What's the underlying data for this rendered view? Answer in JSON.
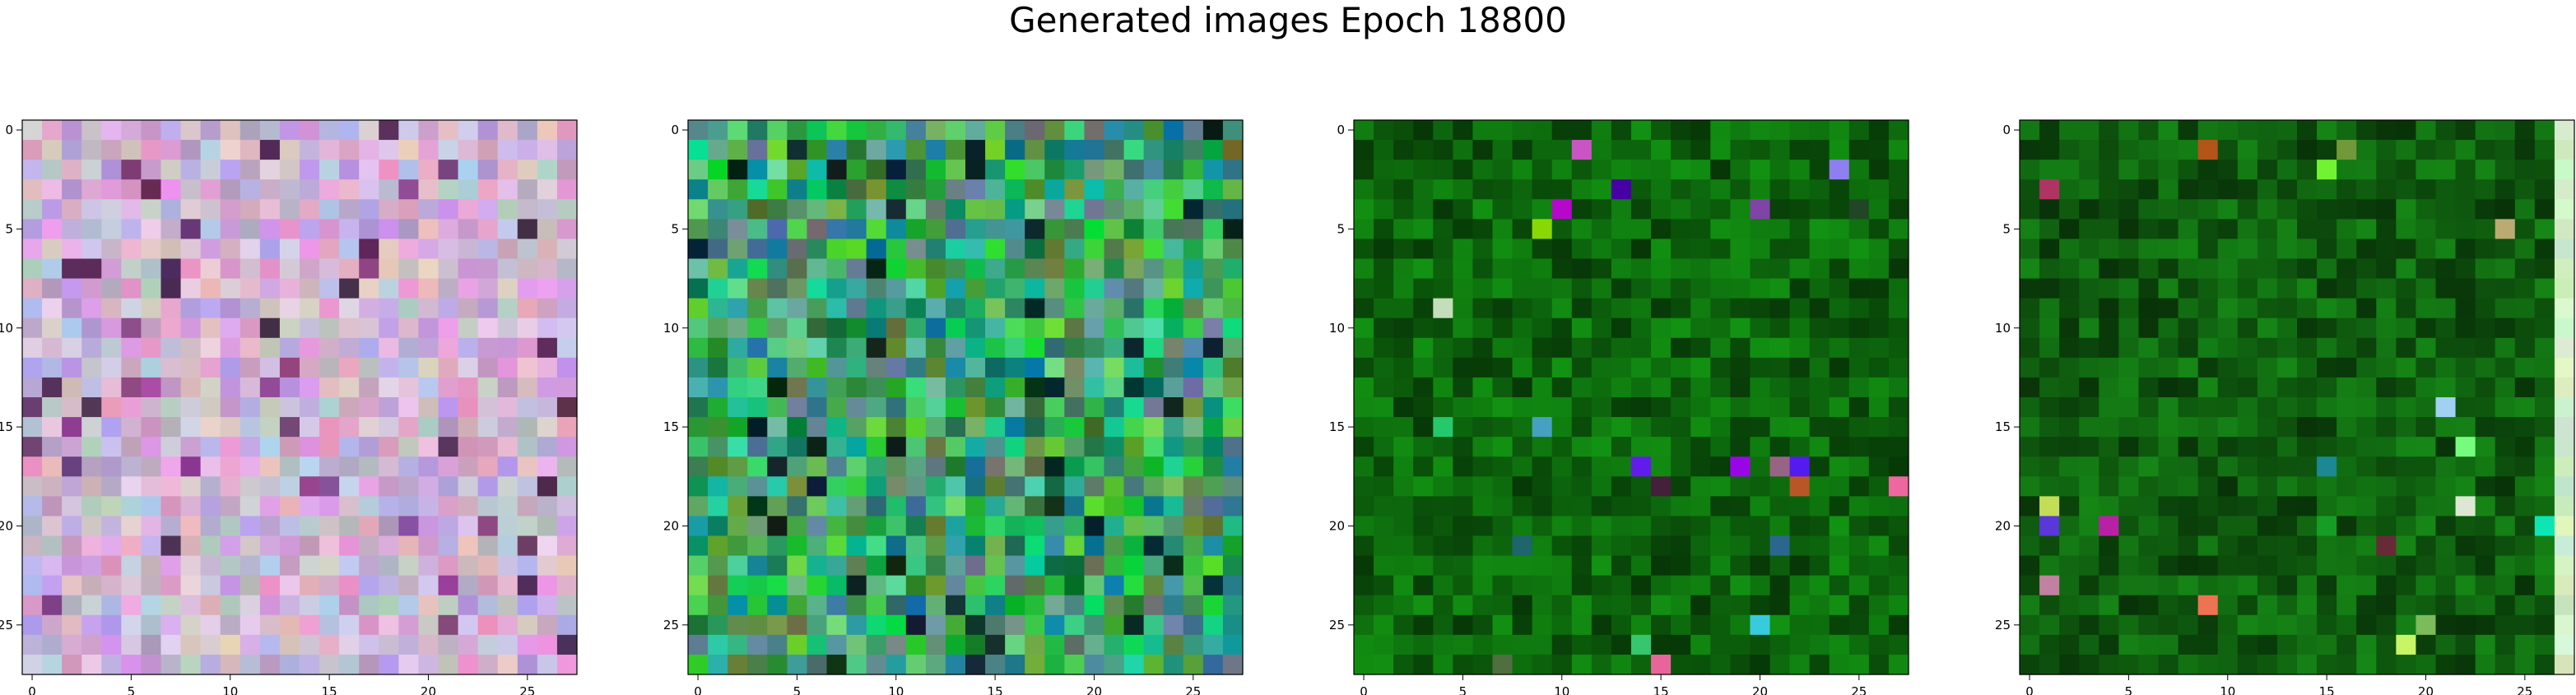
{
  "title": "Generated images Epoch 18800",
  "chart_data": [
    {
      "type": "heatmap",
      "grid": [
        28,
        28
      ],
      "base_color": "#cdb3d3",
      "xticks": [
        "0",
        "5",
        "10",
        "15",
        "20",
        "25"
      ],
      "yticks": [
        "0",
        "5",
        "10",
        "15",
        "20",
        "25"
      ],
      "xlim": [
        -0.5,
        27.5
      ],
      "ylim": [
        27.5,
        -0.5
      ]
    },
    {
      "type": "heatmap",
      "grid": [
        28,
        28
      ],
      "base_color": "#3fa36a",
      "xticks": [
        "0",
        "5",
        "10",
        "15",
        "20",
        "25"
      ],
      "yticks": [
        "0",
        "5",
        "10",
        "15",
        "20",
        "25"
      ],
      "xlim": [
        -0.5,
        27.5
      ],
      "ylim": [
        27.5,
        -0.5
      ]
    },
    {
      "type": "heatmap",
      "grid": [
        28,
        28
      ],
      "base_color": "#0f7a0f",
      "xticks": [
        "0",
        "5",
        "10",
        "15",
        "20",
        "25"
      ],
      "yticks": [
        "0",
        "5",
        "10",
        "15",
        "20",
        "25"
      ],
      "xlim": [
        -0.5,
        27.5
      ],
      "ylim": [
        27.5,
        -0.5
      ]
    },
    {
      "type": "heatmap",
      "grid": [
        28,
        28
      ],
      "base_color": "#127012",
      "xticks": [
        "0",
        "5",
        "10",
        "15",
        "20",
        "25"
      ],
      "yticks": [
        "0",
        "5",
        "10",
        "15",
        "20",
        "25"
      ],
      "xlim": [
        -0.5,
        27.5
      ],
      "ylim": [
        27.5,
        -0.5
      ]
    }
  ]
}
